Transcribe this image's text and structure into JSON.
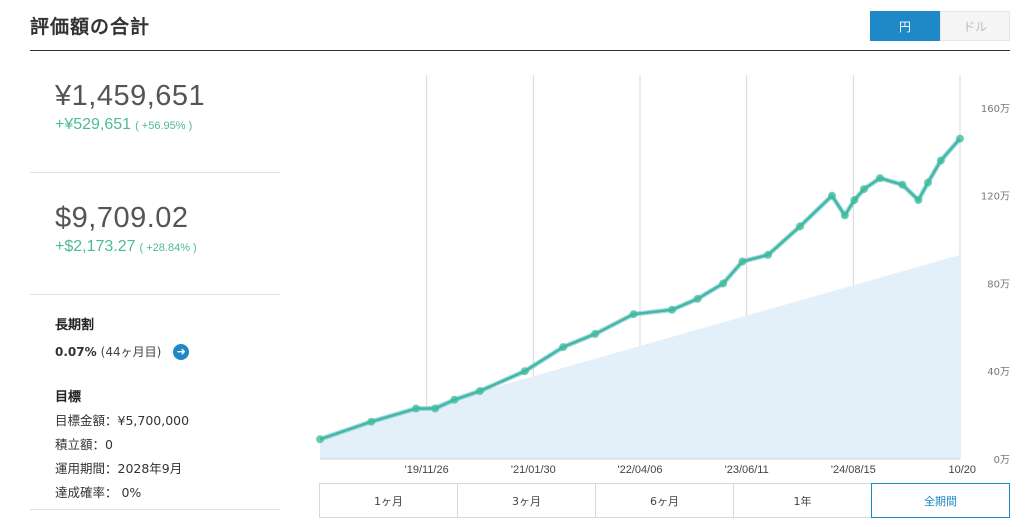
{
  "header": {
    "title": "評価額の合計",
    "currency": [
      {
        "label": "円",
        "active": true
      },
      {
        "label": "ドル",
        "active": false
      }
    ]
  },
  "summary": {
    "jpy": {
      "value": "¥1,459,651",
      "gain": "+¥529,651",
      "gain_pct": "( +56.95% )"
    },
    "usd": {
      "value": "$9,709.02",
      "gain": "+$2,173.27",
      "gain_pct": "( +28.84% )"
    }
  },
  "long_term": {
    "title": "長期割",
    "rate": "0.07%",
    "months": "(44ヶ月目)"
  },
  "goal": {
    "title": "目標",
    "items": [
      "目標金額：¥5,700,000",
      "積立額：0",
      "運用期間：2028年9月",
      "達成確率： 0%"
    ]
  },
  "periods": [
    {
      "label": "1ヶ月",
      "active": false
    },
    {
      "label": "3ヶ月",
      "active": false
    },
    {
      "label": "6ヶ月",
      "active": false
    },
    {
      "label": "1年",
      "active": false
    },
    {
      "label": "全期間",
      "active": true
    }
  ],
  "colors": {
    "accent": "#1f88c6",
    "gain": "#4cbb93",
    "value_line": "#3dbb9a",
    "principal_fill": "#e3f0f9"
  },
  "chart_data": {
    "type": "area",
    "x_ticks": [
      "'19/11/26",
      "'21/01/30",
      "'22/04/06",
      "'23/06/11",
      "'24/08/15",
      "10/20"
    ],
    "y_ticks": [
      "0万",
      "40万",
      "80万",
      "120万",
      "160万"
    ],
    "ylim": [
      0,
      175
    ],
    "y_unit": "万",
    "grid": "vertical",
    "series": [
      {
        "style": "area",
        "x": [
          0,
          1
        ],
        "values": [
          10,
          93
        ]
      },
      {
        "style": "line",
        "x": [
          0,
          0.08,
          0.15,
          0.18,
          0.21,
          0.25,
          0.32,
          0.38,
          0.43,
          0.49,
          0.55,
          0.59,
          0.63,
          0.66,
          0.7,
          0.75,
          0.8,
          0.82,
          0.835,
          0.85,
          0.875,
          0.91,
          0.935,
          0.95,
          0.97,
          1.0
        ],
        "values": [
          9,
          17,
          23,
          23,
          27,
          31,
          40,
          51,
          57,
          66,
          68,
          73,
          80,
          90,
          93,
          106,
          120,
          111,
          118,
          123,
          128,
          125,
          118,
          126,
          136,
          146
        ]
      }
    ]
  }
}
